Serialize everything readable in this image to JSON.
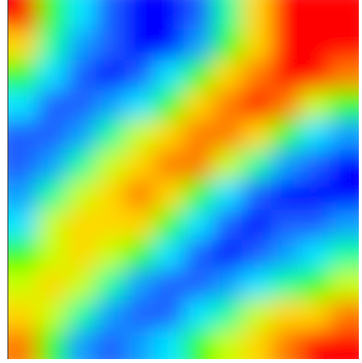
{
  "chart_data": {
    "type": "contour",
    "levels": [
      -1.0,
      -0.8,
      -0.6,
      -0.4,
      -0.2,
      0,
      0.2,
      0.4,
      0.6,
      0.8,
      1.0
    ],
    "colors": [
      "#0000ff",
      "#1f5fff",
      "#0a9fff",
      "#00e5ff",
      "#00ff9a",
      "#2bff00",
      "#c8ff00",
      "#ffd700",
      "#ff7a00",
      "#ff0000"
    ],
    "z": [
      [
        0.8,
        0.1,
        -0.4,
        -0.8,
        -0.9,
        -1.0,
        -0.7,
        -0.1,
        0.4,
        0.8,
        1.0,
        0.95
      ],
      [
        0.4,
        -0.1,
        -0.5,
        -0.8,
        -0.9,
        -0.9,
        -0.6,
        0,
        0.5,
        0.8,
        0.95,
        1.0
      ],
      [
        0,
        -0.4,
        -0.8,
        -0.9,
        -0.7,
        -0.4,
        0,
        0.4,
        0.7,
        0.85,
        0.9,
        0.7
      ],
      [
        -0.4,
        -0.7,
        -0.8,
        -0.6,
        -0.3,
        0.1,
        0.5,
        0.75,
        0.8,
        0.6,
        0.3,
        0
      ],
      [
        -0.7,
        -0.8,
        -0.5,
        -0.2,
        0.2,
        0.5,
        0.75,
        0.75,
        0.4,
        0,
        -0.4,
        -0.6
      ],
      [
        -0.8,
        -0.5,
        -0.1,
        0.3,
        0.55,
        0.7,
        0.6,
        0.2,
        -0.2,
        -0.6,
        -0.8,
        -0.9
      ],
      [
        -0.6,
        -0.1,
        0.3,
        0.5,
        0.65,
        0.5,
        0.1,
        -0.3,
        -0.7,
        -0.9,
        -0.95,
        -0.9
      ],
      [
        -0.3,
        0.2,
        0.45,
        0.55,
        0.45,
        0.1,
        -0.3,
        -0.7,
        -0.9,
        -0.8,
        -0.7,
        -0.6
      ],
      [
        0,
        0.35,
        0.45,
        0.35,
        0,
        -0.4,
        -0.8,
        -0.9,
        -0.7,
        -0.5,
        -0.3,
        -0.2
      ],
      [
        0.3,
        0.4,
        0.3,
        -0.1,
        -0.5,
        -0.8,
        -0.8,
        -0.5,
        -0.3,
        -0.1,
        0.1,
        0.2
      ],
      [
        0.45,
        0.3,
        -0.1,
        -0.6,
        -0.8,
        -0.7,
        -0.4,
        -0.1,
        0.2,
        0.4,
        0.5,
        0.6
      ],
      [
        0.6,
        0.1,
        -0.5,
        -0.7,
        -0.6,
        -0.3,
        0,
        0.3,
        0.5,
        0.7,
        0.8,
        0.9
      ]
    ]
  }
}
